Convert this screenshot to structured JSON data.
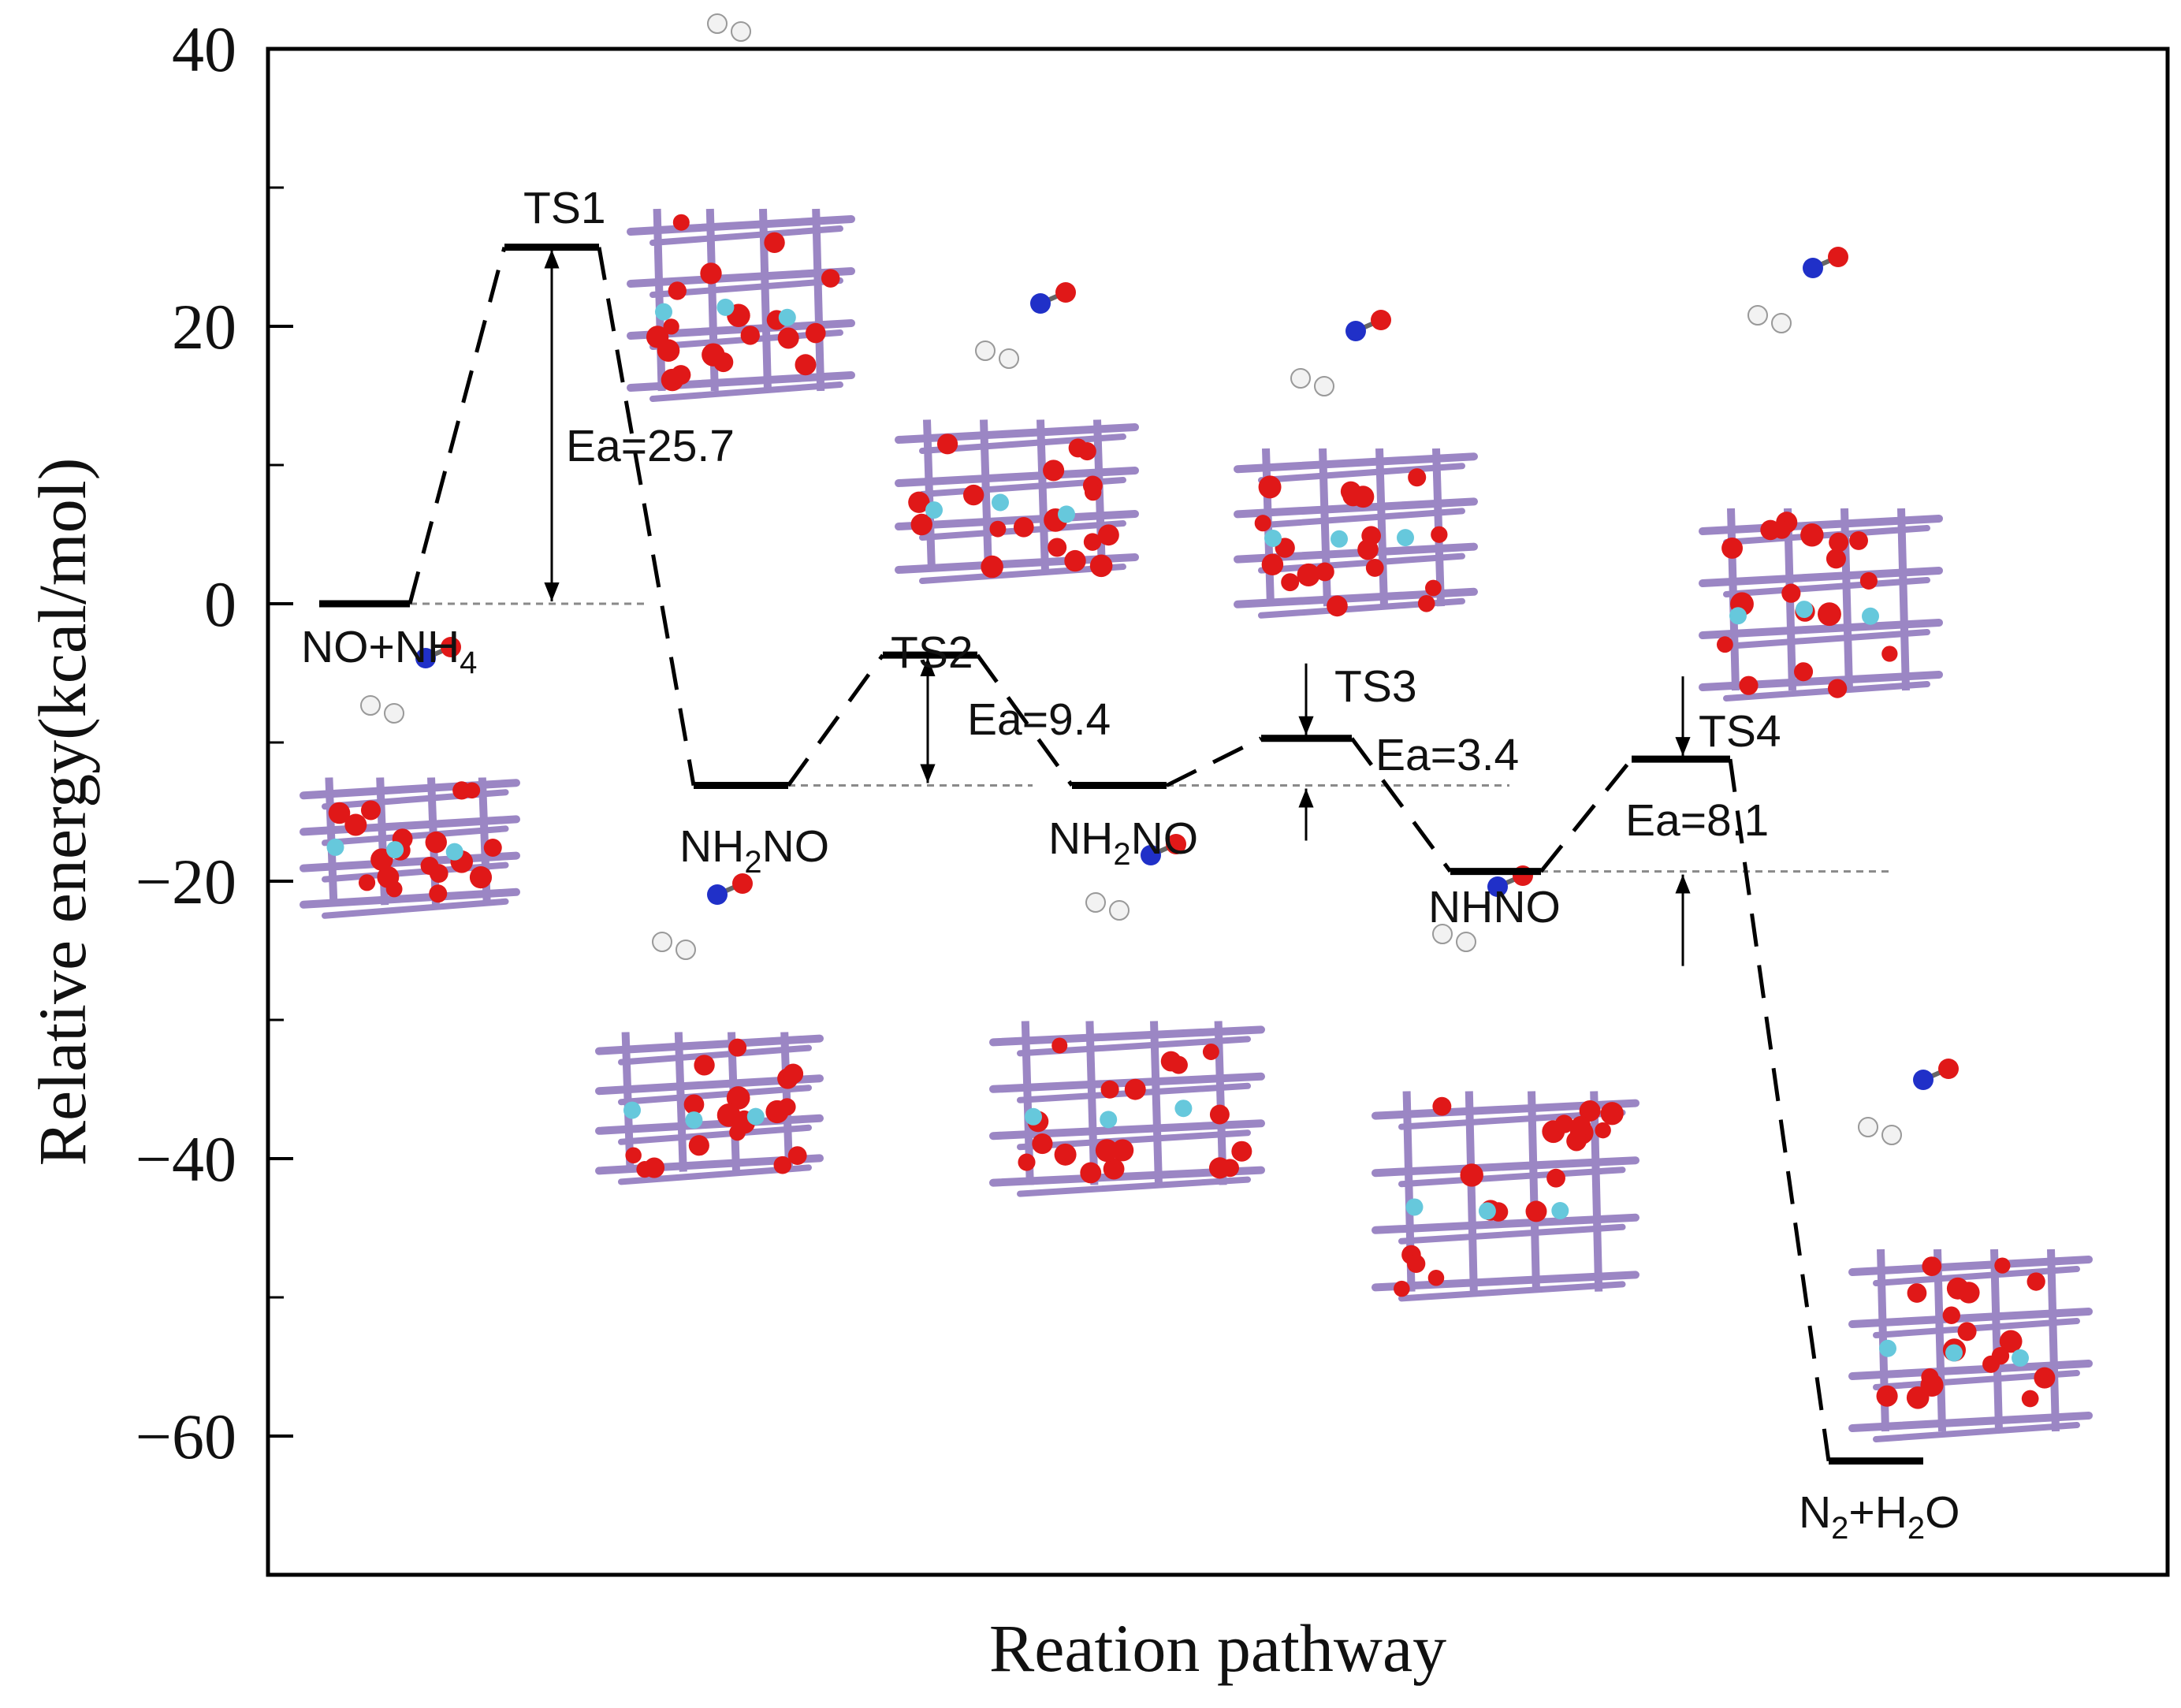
{
  "chart_data": {
    "type": "line",
    "title": "",
    "xlabel": "Reation pathway",
    "ylabel": "Relative energy(kcal/mol)",
    "ylim": [
      -70,
      40
    ],
    "yticks": [
      40,
      20,
      0,
      -20,
      -40,
      -60
    ],
    "ytick_labels": [
      "40",
      "20",
      "0",
      "−20",
      "−40",
      "−60"
    ],
    "grid": false,
    "legend": "none",
    "series": [
      {
        "states": [
          {
            "label": "NO+NH",
            "sub": "4",
            "label_after": "",
            "value": 0
          },
          {
            "label": "TS1",
            "sub": "",
            "label_after": "",
            "value": 25.7
          },
          {
            "label": "NH",
            "sub": "2",
            "label_after": "NO",
            "value": -13.1
          },
          {
            "label": "TS2",
            "sub": "",
            "label_after": "",
            "value": -3.7
          },
          {
            "label": "NH",
            "sub": "2",
            "label_after": "NO",
            "value": -13.1
          },
          {
            "label": "TS3",
            "sub": "",
            "label_after": "",
            "value": -9.7
          },
          {
            "label": "NHNO",
            "sub": "",
            "label_after": "",
            "value": -19.3
          },
          {
            "label": "TS4",
            "sub": "",
            "label_after": "",
            "value": -11.2
          },
          {
            "label": "N",
            "sub": "2",
            "label_after": "+H",
            "sub2": "2",
            "label_after2": "O",
            "value": -61.8
          }
        ]
      }
    ],
    "annotations": [
      {
        "text": "Ea=25.7",
        "from": 0,
        "to": 25.7
      },
      {
        "text": "Ea=9.4",
        "from": -13.1,
        "to": -3.7
      },
      {
        "text": "Ea=3.4",
        "from": -13.1,
        "to": -9.7
      },
      {
        "text": "Ea=8.1",
        "from": -19.3,
        "to": -11.2
      }
    ],
    "colors": {
      "line": "#000000",
      "frame": "#000000",
      "reference": "#8a8a8a",
      "oxygen": "#e01818",
      "metal": "#9b86c4",
      "nitrogen": "#2030c8",
      "hydrogen": "#f2f2f2",
      "ion": "#66c8dc"
    }
  }
}
